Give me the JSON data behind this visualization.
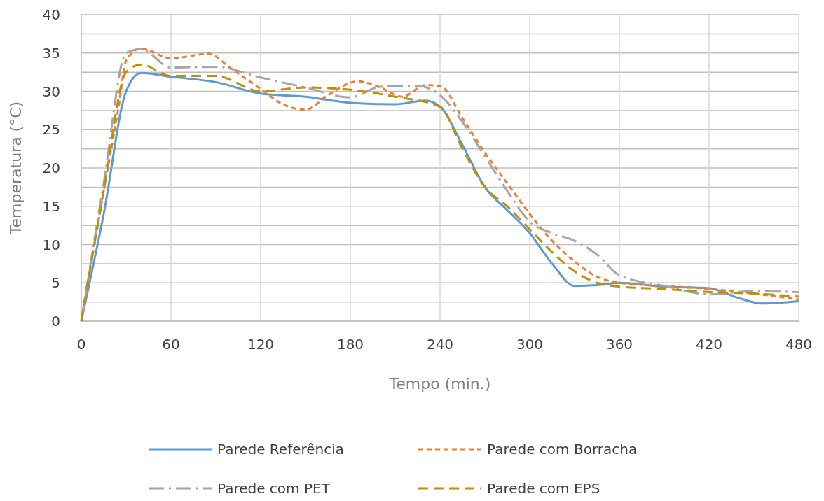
{
  "chart_data": {
    "type": "line",
    "xlabel": "Tempo (min.)",
    "ylabel": "Temperatura (°C)",
    "xlim": [
      0,
      480
    ],
    "xticks": [
      0,
      60,
      120,
      180,
      240,
      300,
      360,
      420,
      480
    ],
    "ylim": [
      0,
      40
    ],
    "yticks": [
      0,
      {
        "value": 2.5,
        "label": null
      },
      5,
      {
        "value": 7.5,
        "label": null
      },
      10,
      {
        "value": 12.5,
        "label": null
      },
      15,
      {
        "value": 17.5,
        "label": null
      },
      20,
      {
        "value": 22.5,
        "label": null
      },
      25,
      {
        "value": 27.5,
        "label": null
      },
      30,
      {
        "value": 32.5,
        "label": null
      },
      35,
      {
        "value": 37.5,
        "label": null
      },
      40
    ],
    "grid": true,
    "legend": "bottom",
    "series": [
      {
        "name": "Parede Referência",
        "color": "#5b9bd5",
        "line_style": "solid",
        "x": [
          0,
          15,
          30,
          40,
          60,
          90,
          120,
          150,
          180,
          210,
          230,
          240,
          255,
          270,
          285,
          300,
          315,
          330,
          345,
          360,
          390,
          420,
          440,
          455,
          480
        ],
        "values": [
          0,
          14,
          30,
          32.4,
          31.9,
          31.2,
          29.7,
          29.3,
          28.5,
          28.3,
          28.8,
          28,
          23,
          17.5,
          14.5,
          11.5,
          7.5,
          4.6,
          4.7,
          5,
          4.5,
          4.3,
          3,
          2.3,
          2.6
        ]
      },
      {
        "name": "Parede com Borracha",
        "color": "#ed7d31",
        "line_style": "dotted",
        "x": [
          0,
          15,
          25,
          30,
          40,
          60,
          85,
          100,
          120,
          135,
          150,
          165,
          185,
          200,
          215,
          230,
          240,
          255,
          270,
          285,
          300,
          315,
          330,
          345,
          360,
          390,
          420,
          450,
          480
        ],
        "values": [
          0,
          17,
          28,
          34,
          35.6,
          34.3,
          34.9,
          33,
          30.3,
          28.3,
          27.6,
          29.5,
          31.3,
          30.5,
          29.3,
          30.8,
          30.7,
          26.5,
          22,
          18,
          14,
          10.5,
          7.8,
          5.8,
          5,
          4.6,
          4.2,
          3.6,
          2.8
        ]
      },
      {
        "name": "Parede com PET",
        "color": "#a5a5a5",
        "line_style": "dashdot",
        "x": [
          0,
          15,
          30,
          40,
          60,
          90,
          120,
          150,
          180,
          200,
          225,
          240,
          255,
          270,
          285,
          300,
          315,
          330,
          345,
          360,
          390,
          420,
          450,
          480
        ],
        "values": [
          0,
          18,
          35,
          35.5,
          33.1,
          33.2,
          31.8,
          30.5,
          29.2,
          30.6,
          30.7,
          29.5,
          26,
          21.5,
          17,
          13,
          11.5,
          10.5,
          8.7,
          6,
          4.6,
          3.5,
          3.9,
          3.8
        ]
      },
      {
        "name": "Parede com EPS",
        "color": "#bf9000",
        "line_style": "dashed",
        "x": [
          0,
          15,
          30,
          40,
          60,
          90,
          120,
          150,
          180,
          210,
          240,
          255,
          270,
          285,
          300,
          315,
          330,
          345,
          360,
          390,
          420,
          450,
          480
        ],
        "values": [
          0,
          17,
          32.5,
          33.5,
          32,
          32,
          30,
          30.5,
          30.2,
          29.3,
          28,
          22.5,
          17.5,
          15,
          12,
          9,
          6.5,
          5,
          4.5,
          4.2,
          3.8,
          3.6,
          3.2
        ]
      }
    ]
  }
}
